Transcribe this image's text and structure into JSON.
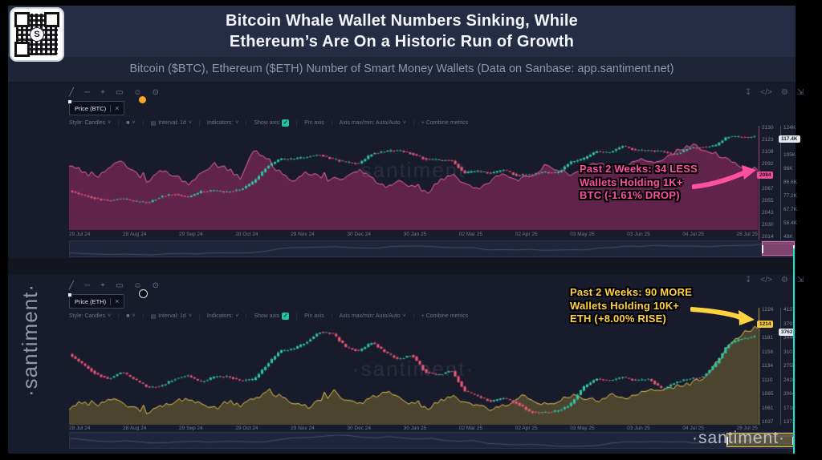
{
  "header": {
    "title1": "Bitcoin Whale Wallet Numbers Sinking, While",
    "title2": "Ethereum’s Are On a Historic Run of Growth",
    "subtitle": "Bitcoin ($BTC), Ethereum ($ETH) Number of Smart Money Wallets (Data on Sanbase: app.santiment.net)"
  },
  "side_watermark": "·santiment·",
  "watermark_chart": "·santiment·",
  "watermark_bottom": "·santiment·",
  "qr_center_glyph": "S",
  "icons": {
    "line": "╱",
    "hline": "─",
    "cross": "+",
    "note": "▭",
    "emoji": "☺",
    "eye": "⊙",
    "download": "↧",
    "code": "</>",
    "gear": "⚙",
    "fullscreen": "⇲",
    "check": "✓",
    "close": "×",
    "chevron": "˅",
    "calendar": "▤",
    "square": "■"
  },
  "toolbar": {
    "style": "Style: Candles",
    "interval": "Interval: 1d",
    "indicators": "Indicators:",
    "show_axis": "Show axis",
    "pin_axis": "Pin axis",
    "axis_maxmin": "Axis max/min: Auto/Auto",
    "combine": "+ Combine metrics"
  },
  "panels": [
    {
      "chip": "Price (BTC)",
      "accent": "#ff4fa3",
      "annotation": [
        "Past 2 Weeks: 34 LESS",
        "Wallets Holding 1K+",
        "BTC (-1.61% DROP)"
      ]
    },
    {
      "chip": "Price (ETH)",
      "accent": "#ffd23f",
      "annotation": [
        "Past 2 Weeks: 90 MORE",
        "Wallets Holding 10K+",
        "ETH (+8.00% RISE)"
      ]
    }
  ],
  "chart_data": [
    {
      "type": "candlestick+area",
      "title": "Bitcoin price (candles, 1d) with number of wallets holding 1K+ BTC (area)",
      "x_ticks": [
        "29 Jul 24",
        "28 Aug 24",
        "29 Sep 24",
        "28 Oct 24",
        "29 Nov 24",
        "30 Dec 24",
        "30 Jan 25",
        "02 Mar 25",
        "02 Apr 25",
        "03 May 25",
        "03 Jun 25",
        "04 Jul 25",
        "28 Jul 25"
      ],
      "price": {
        "name": "Price (BTC)",
        "unit": "K USD",
        "axis_ticks": [
          "124K",
          "114K",
          "105K",
          "96K",
          "86.6K",
          "77.2K",
          "67.7K",
          "58.4K",
          "49K"
        ],
        "current": "117.4K",
        "range": [
          32,
          126
        ],
        "values": [
          68,
          64,
          61,
          59,
          61,
          58,
          57,
          63,
          65,
          62,
          67,
          68,
          67,
          69,
          76,
          90,
          97,
          97,
          99,
          101,
          97,
          94,
          93,
          102,
          104,
          105,
          102,
          97,
          96,
          96,
          84,
          86,
          84,
          87,
          82,
          83,
          85,
          84,
          94,
          97,
          104,
          103,
          109,
          105,
          105,
          104,
          101,
          107,
          108,
          109,
          118,
          117,
          117.4
        ]
      },
      "wallets": {
        "name": "Wallets holding 1K+ BTC",
        "unit": "wallets",
        "axis_ticks": [
          "2130",
          "2123",
          "2108",
          "2092",
          "2079",
          "2067",
          "2055",
          "2043",
          "2030",
          "2014"
        ],
        "current": "2084",
        "range": [
          2008,
          2140
        ],
        "values": [
          2092,
          2084,
          2076,
          2088,
          2096,
          2080,
          2071,
          2086,
          2078,
          2068,
          2081,
          2093,
          2086,
          2075,
          2112,
          2096,
          2081,
          2071,
          2083,
          2076,
          2069,
          2079,
          2086,
          2073,
          2061,
          2071,
          2063,
          2056,
          2071,
          2079,
          2066,
          2059,
          2073,
          2081,
          2069,
          2076,
          2091,
          2086,
          2079,
          2089,
          2096,
          2086,
          2091,
          2099,
          2093,
          2101,
          2111,
          2118,
          2112,
          2104,
          2095,
          2088,
          2084
        ]
      },
      "colors": {
        "up": "#2fc6a6",
        "down": "#ef5878",
        "area_fill": "rgba(168,44,110,0.5)",
        "area_line": "#f06ab2"
      }
    },
    {
      "type": "candlestick+area",
      "title": "Ethereum price (candles, 1d) with number of wallets holding 10K+ ETH (area)",
      "x_ticks": [
        "28 Jul 24",
        "28 Aug 24",
        "29 Sep 24",
        "29 Oct 24",
        "29 Nov 24",
        "30 Dec 24",
        "30 Jan 25",
        "02 Mar 25",
        "02 Apr 25",
        "03 May 25",
        "03 Jun 25",
        "04 Jul 25",
        "28 Jul 25"
      ],
      "price": {
        "name": "Price (ETH)",
        "unit": "USD",
        "axis_ticks": [
          "4137",
          "3791",
          "3446",
          "3101",
          "2755",
          "2410",
          "2064",
          "1718",
          "1373"
        ],
        "current": "3762",
        "range": [
          1235,
          4220
        ],
        "values": [
          3260,
          2980,
          2700,
          2550,
          2750,
          2520,
          2300,
          2350,
          2550,
          2650,
          2450,
          2600,
          2620,
          2500,
          2520,
          2950,
          3350,
          3400,
          3600,
          3900,
          3850,
          3450,
          3350,
          3600,
          3300,
          3100,
          3250,
          2750,
          2650,
          2800,
          2200,
          2050,
          1900,
          2000,
          1850,
          1600,
          1580,
          1620,
          1800,
          2300,
          2550,
          2500,
          2600,
          2500,
          2550,
          2250,
          2450,
          2550,
          2600,
          2950,
          3550,
          3700,
          3762
        ]
      },
      "wallets": {
        "name": "Wallets holding 10K+ ETH",
        "unit": "wallets",
        "axis_ticks": [
          "1226",
          "1204",
          "1181",
          "1158",
          "1134",
          "1110",
          "1085",
          "1061",
          "1037"
        ],
        "current": "1214",
        "range": [
          1032,
          1230
        ],
        "values": [
          1063,
          1076,
          1069,
          1081,
          1073,
          1061,
          1056,
          1069,
          1076,
          1083,
          1071,
          1063,
          1076,
          1069,
          1081,
          1093,
          1086,
          1073,
          1066,
          1079,
          1089,
          1081,
          1073,
          1086,
          1093,
          1081,
          1071,
          1063,
          1076,
          1086,
          1073,
          1066,
          1059,
          1071,
          1081,
          1076,
          1069,
          1079,
          1089,
          1083,
          1079,
          1086,
          1083,
          1091,
          1096,
          1101,
          1106,
          1112,
          1124,
          1152,
          1186,
          1208,
          1214
        ]
      },
      "colors": {
        "up": "#2fc6a6",
        "down": "#ef5878",
        "area_fill": "rgba(196,168,58,0.3)",
        "area_line": "#e7c84d"
      }
    }
  ]
}
